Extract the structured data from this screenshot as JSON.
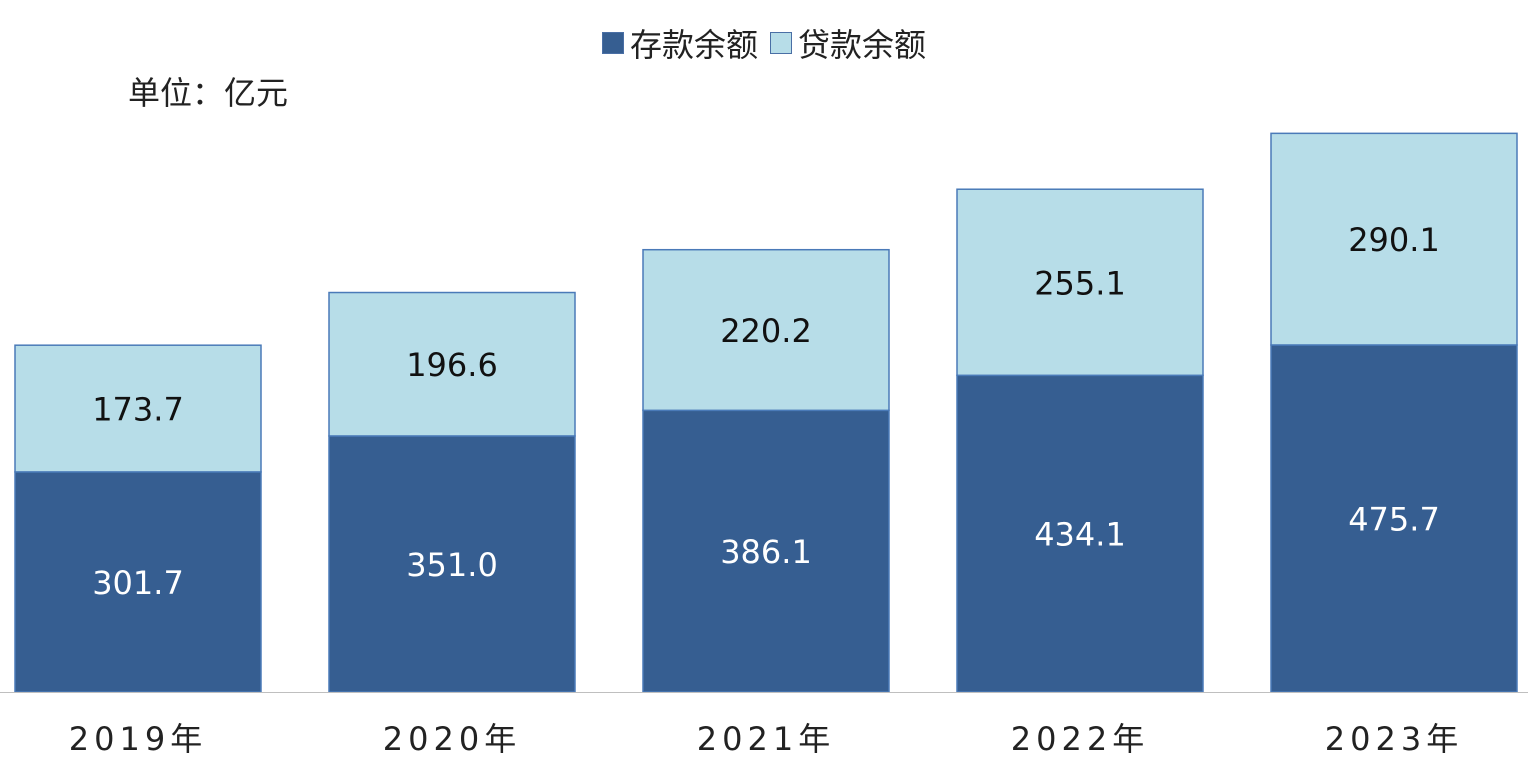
{
  "legend": {
    "deposit_label": "存款余额",
    "loan_label": "贷款余额"
  },
  "unit": "单位：亿元",
  "colors": {
    "deposit": "#365e91",
    "loan": "#b7dde8",
    "border": "#4a7ab8"
  },
  "chart_data": {
    "type": "bar",
    "stacked": true,
    "categories": [
      "2019年",
      "2020年",
      "2021年",
      "2022年",
      "2023年"
    ],
    "series": [
      {
        "name": "存款余额",
        "values": [
          301.7,
          351.0,
          386.1,
          434.1,
          475.7
        ],
        "labels": [
          "301.7",
          "351.0",
          "386.1",
          "434.1",
          "475.7"
        ]
      },
      {
        "name": "贷款余额",
        "values": [
          173.7,
          196.6,
          220.2,
          255.1,
          290.1
        ],
        "labels": [
          "173.7",
          "196.6",
          "220.2",
          "255.1",
          "290.1"
        ]
      }
    ],
    "legend_position": "top-center",
    "grid": false
  }
}
